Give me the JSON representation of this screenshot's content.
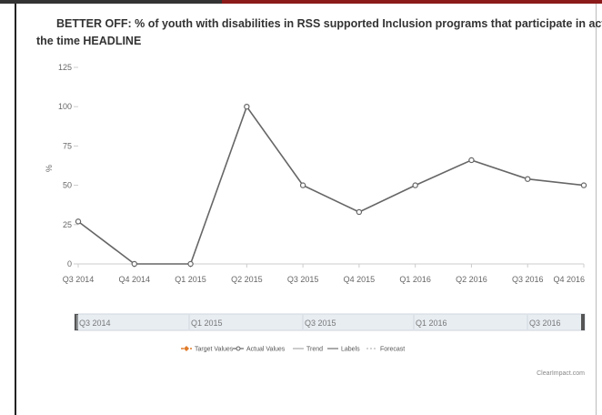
{
  "header": {
    "title_line1": "BETTER OFF: % of youth with disabilities in RSS supported Inclusion programs that participate in activities with their typical",
    "title_line2": "the time HEADLINE"
  },
  "chart_data": {
    "type": "line",
    "title": "BETTER OFF: % of youth with disabilities in RSS supported Inclusion programs that participate in activities with their typical the time HEADLINE",
    "xlabel": "",
    "ylabel": "%",
    "ylim": [
      0,
      125
    ],
    "yticks": [
      "0",
      "25",
      "50",
      "75",
      "100",
      "125"
    ],
    "categories": [
      "Q3 2014",
      "Q4 2014",
      "Q1 2015",
      "Q2 2015",
      "Q3 2015",
      "Q4 2015",
      "Q1 2016",
      "Q2 2016",
      "Q3 2016",
      "Q4 2016"
    ],
    "series": [
      {
        "name": "Actual Values",
        "values": [
          27,
          0,
          0,
          100,
          50,
          33,
          50,
          66,
          54,
          50
        ],
        "color": "#666666"
      }
    ],
    "grid": false,
    "legend_position": "bottom-center"
  },
  "navigator": {
    "labels": [
      "Q3 2014",
      "Q1 2015",
      "Q3 2015",
      "Q1 2016",
      "Q3 2016"
    ]
  },
  "legend": {
    "items": [
      {
        "label": "Target Values",
        "color": "#e07b2a",
        "style": "marker-dash"
      },
      {
        "label": "Actual Values",
        "color": "#666666",
        "style": "marker-line"
      },
      {
        "label": "Trend",
        "color": "#999999",
        "style": "line"
      },
      {
        "label": "Labels",
        "color": "#555555",
        "style": "line"
      },
      {
        "label": "Forecast",
        "color": "#aaaaaa",
        "style": "dotted"
      }
    ]
  },
  "credit": "ClearImpact.com"
}
